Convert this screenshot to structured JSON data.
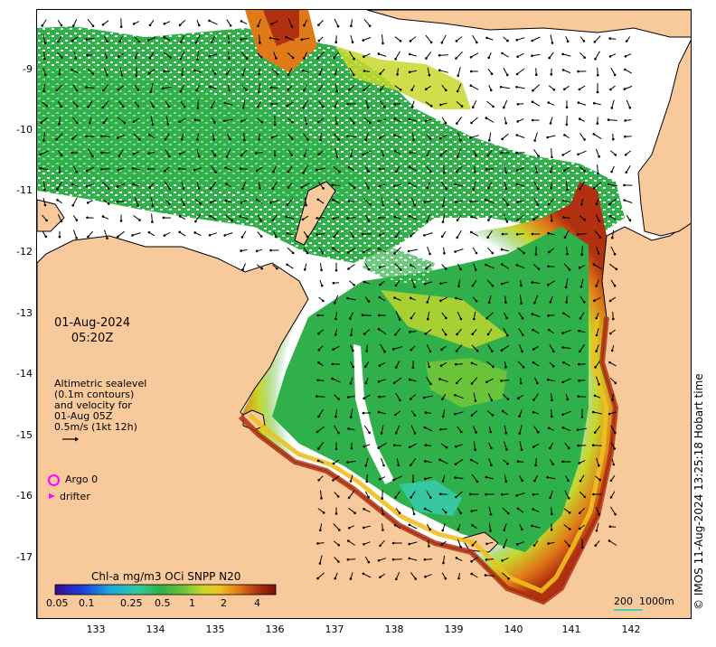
{
  "map": {
    "date": "01-Aug-2024",
    "time": "05:20Z",
    "velocity_note": {
      "lines": [
        "Altimetric sealevel",
        "(0.1m contours)",
        "and velocity for",
        "01-Aug 05Z",
        "0.5m/s (1kt 12h)"
      ]
    },
    "legend": {
      "argo": "Argo 0",
      "drifter": "drifter"
    },
    "colorbar": {
      "title": "Chl-a mg/m3 OCi SNPP N20",
      "ticks": [
        "0.05",
        "0.1",
        "0.25",
        "0.5",
        "1",
        "2",
        "4"
      ]
    },
    "scale_bar": "200  1000m",
    "credit": "© IMOS 11-Aug-2024 13:25:18 Hobart time",
    "lon_ticks": [
      "133",
      "134",
      "135",
      "136",
      "137",
      "138",
      "139",
      "140",
      "141",
      "142"
    ],
    "lat_ticks": [
      "-9",
      "-10",
      "-11",
      "-12",
      "-13",
      "-14",
      "-15",
      "-16",
      "-17"
    ],
    "colors": {
      "land": "#f8c99a",
      "coast_line": "#000000",
      "argo_marker": "#ff00ff",
      "drifter_marker": "#ff00ff",
      "scale_bar": "#44ccbb",
      "chl_ramp": [
        "#3a0a8a",
        "#1a3fd6",
        "#1ca6e0",
        "#35c8a0",
        "#2fb04a",
        "#6ac43a",
        "#c8d82c",
        "#f0c020",
        "#e07a18",
        "#b03010",
        "#7a1008"
      ]
    }
  }
}
